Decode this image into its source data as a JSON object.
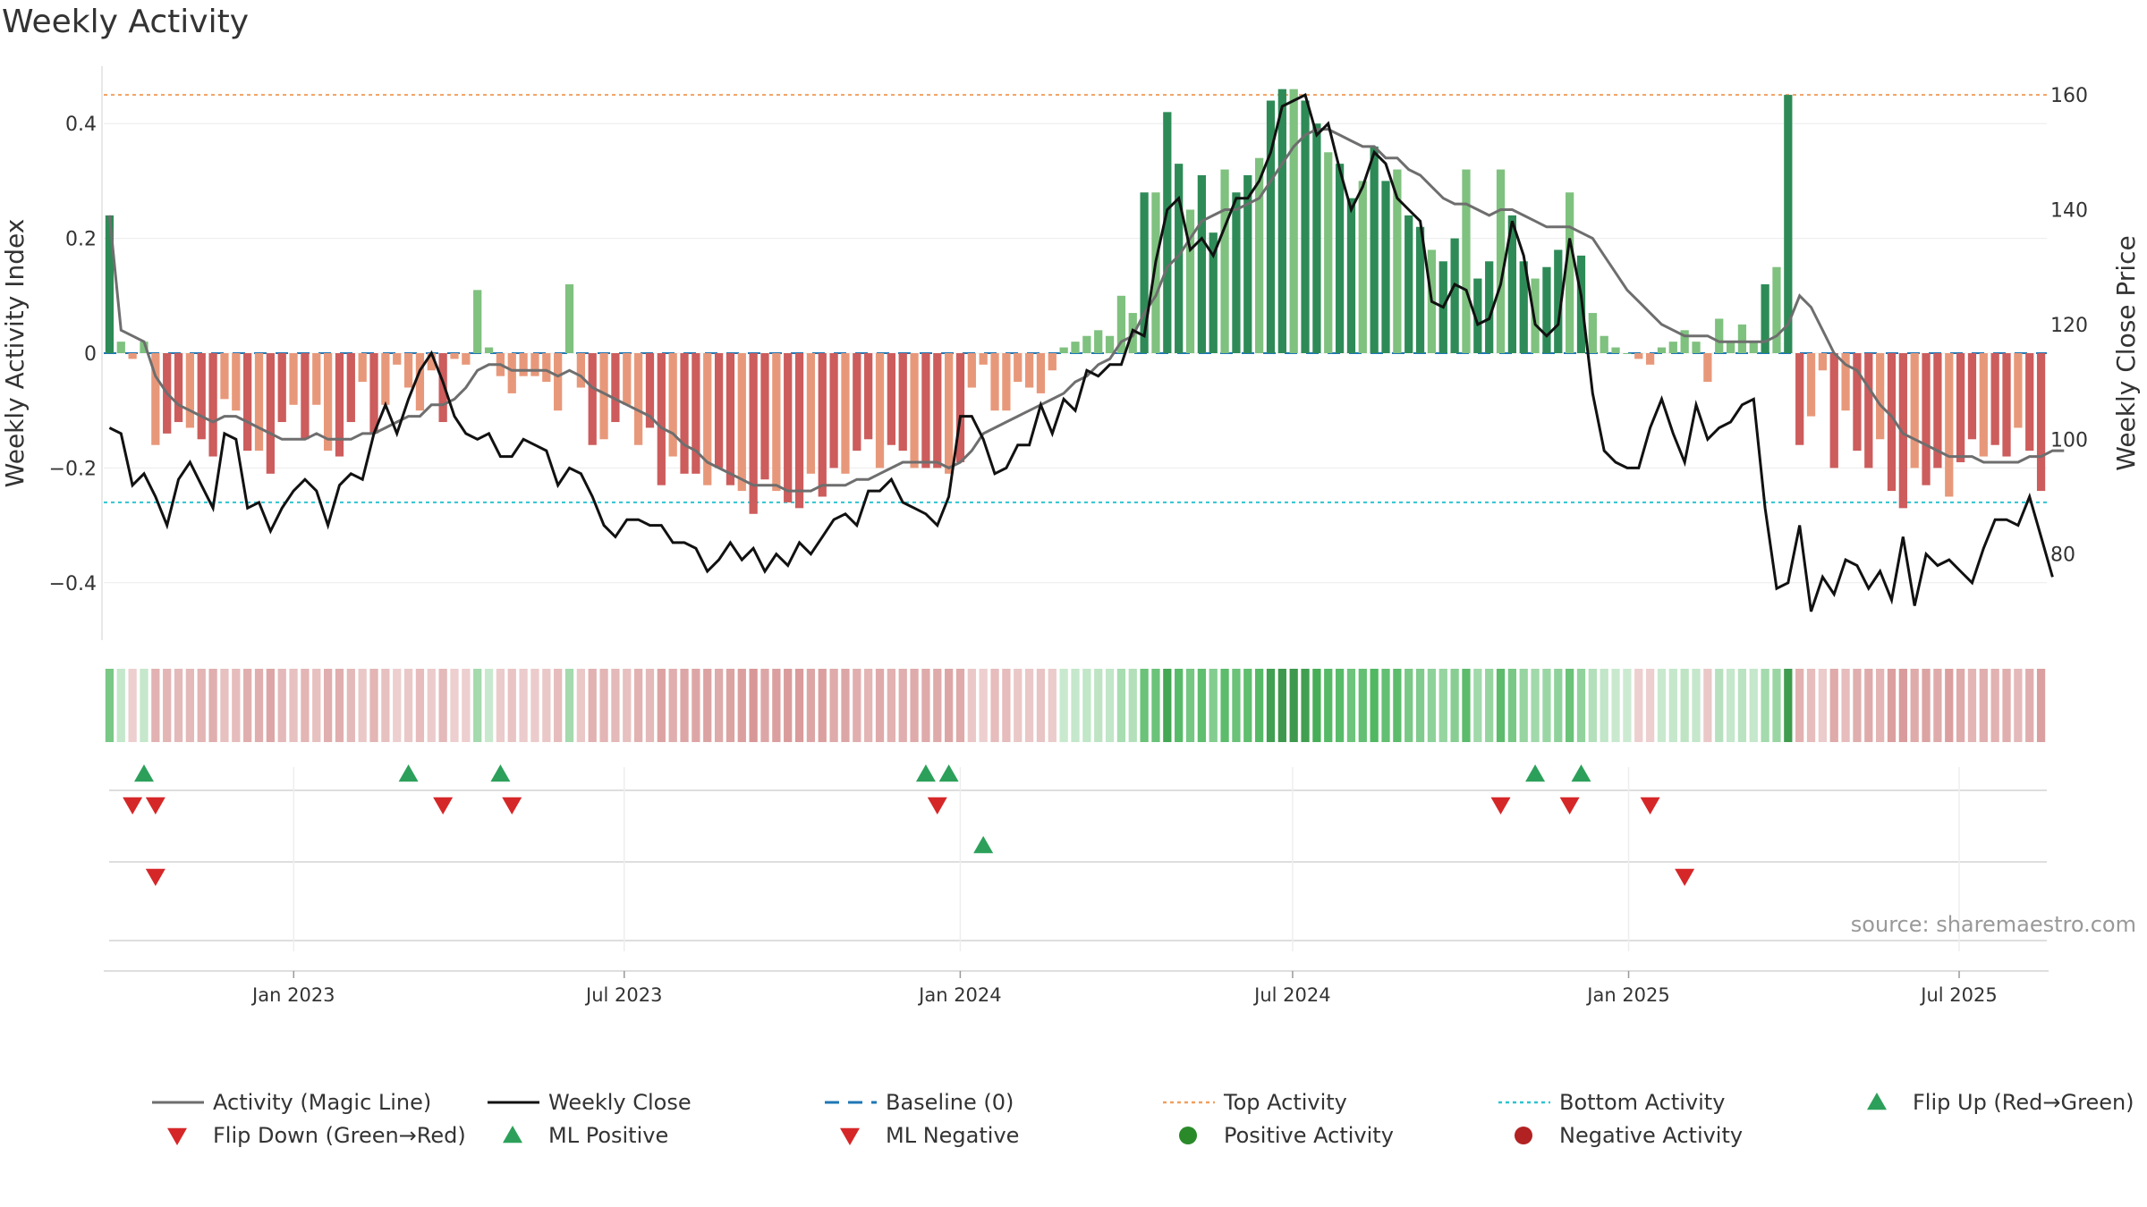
{
  "title": "Weekly Activity",
  "chart_data": {
    "type": "bar",
    "title": "Weekly Activity",
    "ylabel": "Weekly Activity Index",
    "y2label": "Weekly Close Price",
    "ylim": [
      -0.5,
      0.5
    ],
    "y2lim": [
      65,
      165
    ],
    "yticks": [
      0.4,
      0.2,
      0,
      -0.2,
      -0.4
    ],
    "ytick_labels": [
      "0.4",
      "0.2",
      "0",
      "−0.2",
      "−0.4"
    ],
    "y2ticks": [
      160,
      140,
      120,
      100,
      80
    ],
    "y2tick_labels": [
      "160",
      "140",
      "120",
      "100",
      "80"
    ],
    "x_start": "2022-09-19",
    "x_end": "2025-08-18",
    "x_ticks": [
      {
        "date": "2023-01-01",
        "label": "Jan 2023"
      },
      {
        "date": "2023-07-01",
        "label": "Jul 2023"
      },
      {
        "date": "2024-01-01",
        "label": "Jan 2024"
      },
      {
        "date": "2024-07-01",
        "label": "Jul 2024"
      },
      {
        "date": "2025-01-01",
        "label": "Jan 2025"
      },
      {
        "date": "2025-07-01",
        "label": "Jul 2025"
      }
    ],
    "top_activity": 0.45,
    "bottom_activity": -0.26,
    "activity": [
      0.24,
      0.02,
      -0.01,
      0.02,
      -0.16,
      -0.14,
      -0.12,
      -0.13,
      -0.15,
      -0.18,
      -0.08,
      -0.1,
      -0.17,
      -0.17,
      -0.21,
      -0.12,
      -0.09,
      -0.15,
      -0.09,
      -0.17,
      -0.18,
      -0.12,
      -0.05,
      -0.14,
      -0.09,
      -0.02,
      -0.06,
      -0.1,
      -0.03,
      -0.12,
      -0.01,
      -0.02,
      0.11,
      0.01,
      -0.04,
      -0.07,
      -0.04,
      -0.04,
      -0.05,
      -0.1,
      0.12,
      -0.06,
      -0.16,
      -0.15,
      -0.12,
      -0.09,
      -0.16,
      -0.13,
      -0.23,
      -0.18,
      -0.21,
      -0.21,
      -0.23,
      -0.2,
      -0.23,
      -0.24,
      -0.28,
      -0.22,
      -0.24,
      -0.26,
      -0.27,
      -0.21,
      -0.25,
      -0.2,
      -0.21,
      -0.17,
      -0.15,
      -0.2,
      -0.16,
      -0.17,
      -0.2,
      -0.2,
      -0.2,
      -0.21,
      -0.19,
      -0.06,
      -0.02,
      -0.1,
      -0.1,
      -0.05,
      -0.06,
      -0.07,
      -0.03,
      0.01,
      0.02,
      0.03,
      0.04,
      0.03,
      0.1,
      0.07,
      0.28,
      0.28,
      0.42,
      0.33,
      0.25,
      0.31,
      0.21,
      0.32,
      0.28,
      0.31,
      0.34,
      0.44,
      0.46,
      0.46,
      0.44,
      0.4,
      0.35,
      0.33,
      0.27,
      0.3,
      0.36,
      0.3,
      0.32,
      0.24,
      0.22,
      0.18,
      0.16,
      0.2,
      0.32,
      0.13,
      0.16,
      0.32,
      0.24,
      0.16,
      0.13,
      0.15,
      0.18,
      0.28,
      0.17,
      0.07,
      0.03,
      0.01,
      0.0,
      -0.01,
      -0.02,
      0.01,
      0.02,
      0.04,
      0.02,
      -0.05,
      0.06,
      0.02,
      0.05,
      0.02,
      0.12,
      0.15,
      0.45,
      -0.16,
      -0.11,
      -0.03,
      -0.2,
      -0.1,
      -0.17,
      -0.2,
      -0.15,
      -0.24,
      -0.27,
      -0.2,
      -0.23,
      -0.2,
      -0.25,
      -0.19,
      -0.15,
      -0.18,
      -0.16,
      -0.18,
      -0.13,
      -0.17,
      -0.24
    ],
    "magic_line": [
      0.24,
      0.04,
      0.03,
      0.02,
      -0.04,
      -0.07,
      -0.09,
      -0.1,
      -0.11,
      -0.12,
      -0.11,
      -0.11,
      -0.12,
      -0.13,
      -0.14,
      -0.15,
      -0.15,
      -0.15,
      -0.14,
      -0.15,
      -0.15,
      -0.15,
      -0.14,
      -0.14,
      -0.13,
      -0.12,
      -0.11,
      -0.11,
      -0.09,
      -0.09,
      -0.08,
      -0.06,
      -0.03,
      -0.02,
      -0.02,
      -0.03,
      -0.03,
      -0.03,
      -0.03,
      -0.04,
      -0.03,
      -0.04,
      -0.06,
      -0.07,
      -0.08,
      -0.09,
      -0.1,
      -0.11,
      -0.13,
      -0.14,
      -0.16,
      -0.17,
      -0.19,
      -0.2,
      -0.21,
      -0.22,
      -0.23,
      -0.23,
      -0.23,
      -0.24,
      -0.24,
      -0.24,
      -0.23,
      -0.23,
      -0.23,
      -0.22,
      -0.22,
      -0.21,
      -0.2,
      -0.19,
      -0.19,
      -0.19,
      -0.19,
      -0.2,
      -0.19,
      -0.17,
      -0.14,
      -0.13,
      -0.12,
      -0.11,
      -0.1,
      -0.09,
      -0.08,
      -0.07,
      -0.05,
      -0.04,
      -0.02,
      -0.01,
      0.02,
      0.03,
      0.07,
      0.1,
      0.15,
      0.17,
      0.2,
      0.23,
      0.24,
      0.25,
      0.25,
      0.26,
      0.27,
      0.3,
      0.33,
      0.36,
      0.38,
      0.39,
      0.39,
      0.38,
      0.37,
      0.36,
      0.36,
      0.34,
      0.34,
      0.32,
      0.31,
      0.29,
      0.27,
      0.26,
      0.26,
      0.25,
      0.24,
      0.25,
      0.25,
      0.24,
      0.23,
      0.22,
      0.22,
      0.22,
      0.21,
      0.2,
      0.17,
      0.14,
      0.11,
      0.09,
      0.07,
      0.05,
      0.04,
      0.03,
      0.03,
      0.03,
      0.02,
      0.02,
      0.02,
      0.02,
      0.02,
      0.03,
      0.05,
      0.1,
      0.08,
      0.04,
      0.0,
      -0.02,
      -0.03,
      -0.06,
      -0.09,
      -0.11,
      -0.14,
      -0.15,
      -0.16,
      -0.17,
      -0.18,
      -0.18,
      -0.18,
      -0.19,
      -0.19,
      -0.19,
      -0.19,
      -0.18,
      -0.18,
      -0.17,
      -0.17
    ],
    "weekly_close": [
      102,
      101,
      92,
      94,
      90,
      85,
      93,
      96,
      92,
      88,
      101,
      100,
      88,
      89,
      84,
      88,
      91,
      93,
      91,
      85,
      92,
      94,
      93,
      101,
      106,
      101,
      107,
      112,
      115,
      110,
      104,
      101,
      100,
      101,
      97,
      97,
      100,
      99,
      98,
      92,
      95,
      94,
      90,
      85,
      83,
      86,
      86,
      85,
      85,
      82,
      82,
      81,
      77,
      79,
      82,
      79,
      81,
      77,
      80,
      78,
      82,
      80,
      83,
      86,
      87,
      85,
      91,
      91,
      93,
      89,
      88,
      87,
      85,
      90,
      104,
      104,
      100,
      94,
      95,
      99,
      99,
      106,
      101,
      107,
      105,
      112,
      111,
      113,
      113,
      119,
      118,
      131,
      140,
      142,
      133,
      135,
      132,
      137,
      142,
      142,
      145,
      150,
      158,
      159,
      160,
      153,
      155,
      147,
      140,
      144,
      150,
      148,
      142,
      140,
      138,
      124,
      123,
      127,
      126,
      120,
      121,
      127,
      138,
      132,
      120,
      118,
      120,
      135,
      125,
      108,
      98,
      96,
      95,
      95,
      102,
      107,
      101,
      96,
      106,
      100,
      102,
      103,
      106,
      107,
      88,
      74,
      75,
      85,
      70,
      76,
      73,
      79,
      78,
      74,
      77,
      72,
      83,
      71,
      80,
      78,
      79,
      77,
      75,
      81,
      86,
      86,
      85,
      90,
      83,
      76
    ],
    "dot_lines": [
      {
        "label": "Flip Up (Red→Green)",
        "idx": [
          3,
          26,
          34,
          71,
          73,
          124,
          128
        ]
      },
      {
        "label": "Flip Down (Green→Red)",
        "idx": [
          2,
          4,
          29,
          35,
          72,
          121,
          127,
          134
        ]
      },
      {
        "label": "ML Positive",
        "idx": [
          76
        ]
      },
      {
        "label": "ML Negative",
        "idx": [
          4,
          137
        ]
      }
    ],
    "source": "source: sharemaestro.com",
    "legend": [
      {
        "label": "Activity (Magic Line)",
        "kind": "line",
        "color": "#6e6e6e"
      },
      {
        "label": "Weekly Close",
        "kind": "line",
        "color": "#111111"
      },
      {
        "label": "Baseline (0)",
        "kind": "dash",
        "color": "#1f77b4"
      },
      {
        "label": "Top Activity",
        "kind": "dot",
        "color": "#f0a060"
      },
      {
        "label": "Bottom Activity",
        "kind": "dot",
        "color": "#2ec4d0"
      },
      {
        "label": "Flip Up (Red→Green)",
        "kind": "tri-up",
        "color": "#2ca05a"
      },
      {
        "label": "Flip Down (Green→Red)",
        "kind": "tri-down",
        "color": "#d62728"
      },
      {
        "label": "ML Positive",
        "kind": "tri-up",
        "color": "#2ca05a"
      },
      {
        "label": "ML Negative",
        "kind": "tri-down",
        "color": "#d62728"
      },
      {
        "label": "Positive Activity",
        "kind": "circle",
        "color": "#2a8a2a"
      },
      {
        "label": "Negative Activity",
        "kind": "circle",
        "color": "#b22222"
      }
    ],
    "colors": {
      "pos_strong": "#2e8b57",
      "pos_light": "#7fc17f",
      "neg_strong": "#cd5c5c",
      "neg_light": "#e8987a"
    }
  }
}
